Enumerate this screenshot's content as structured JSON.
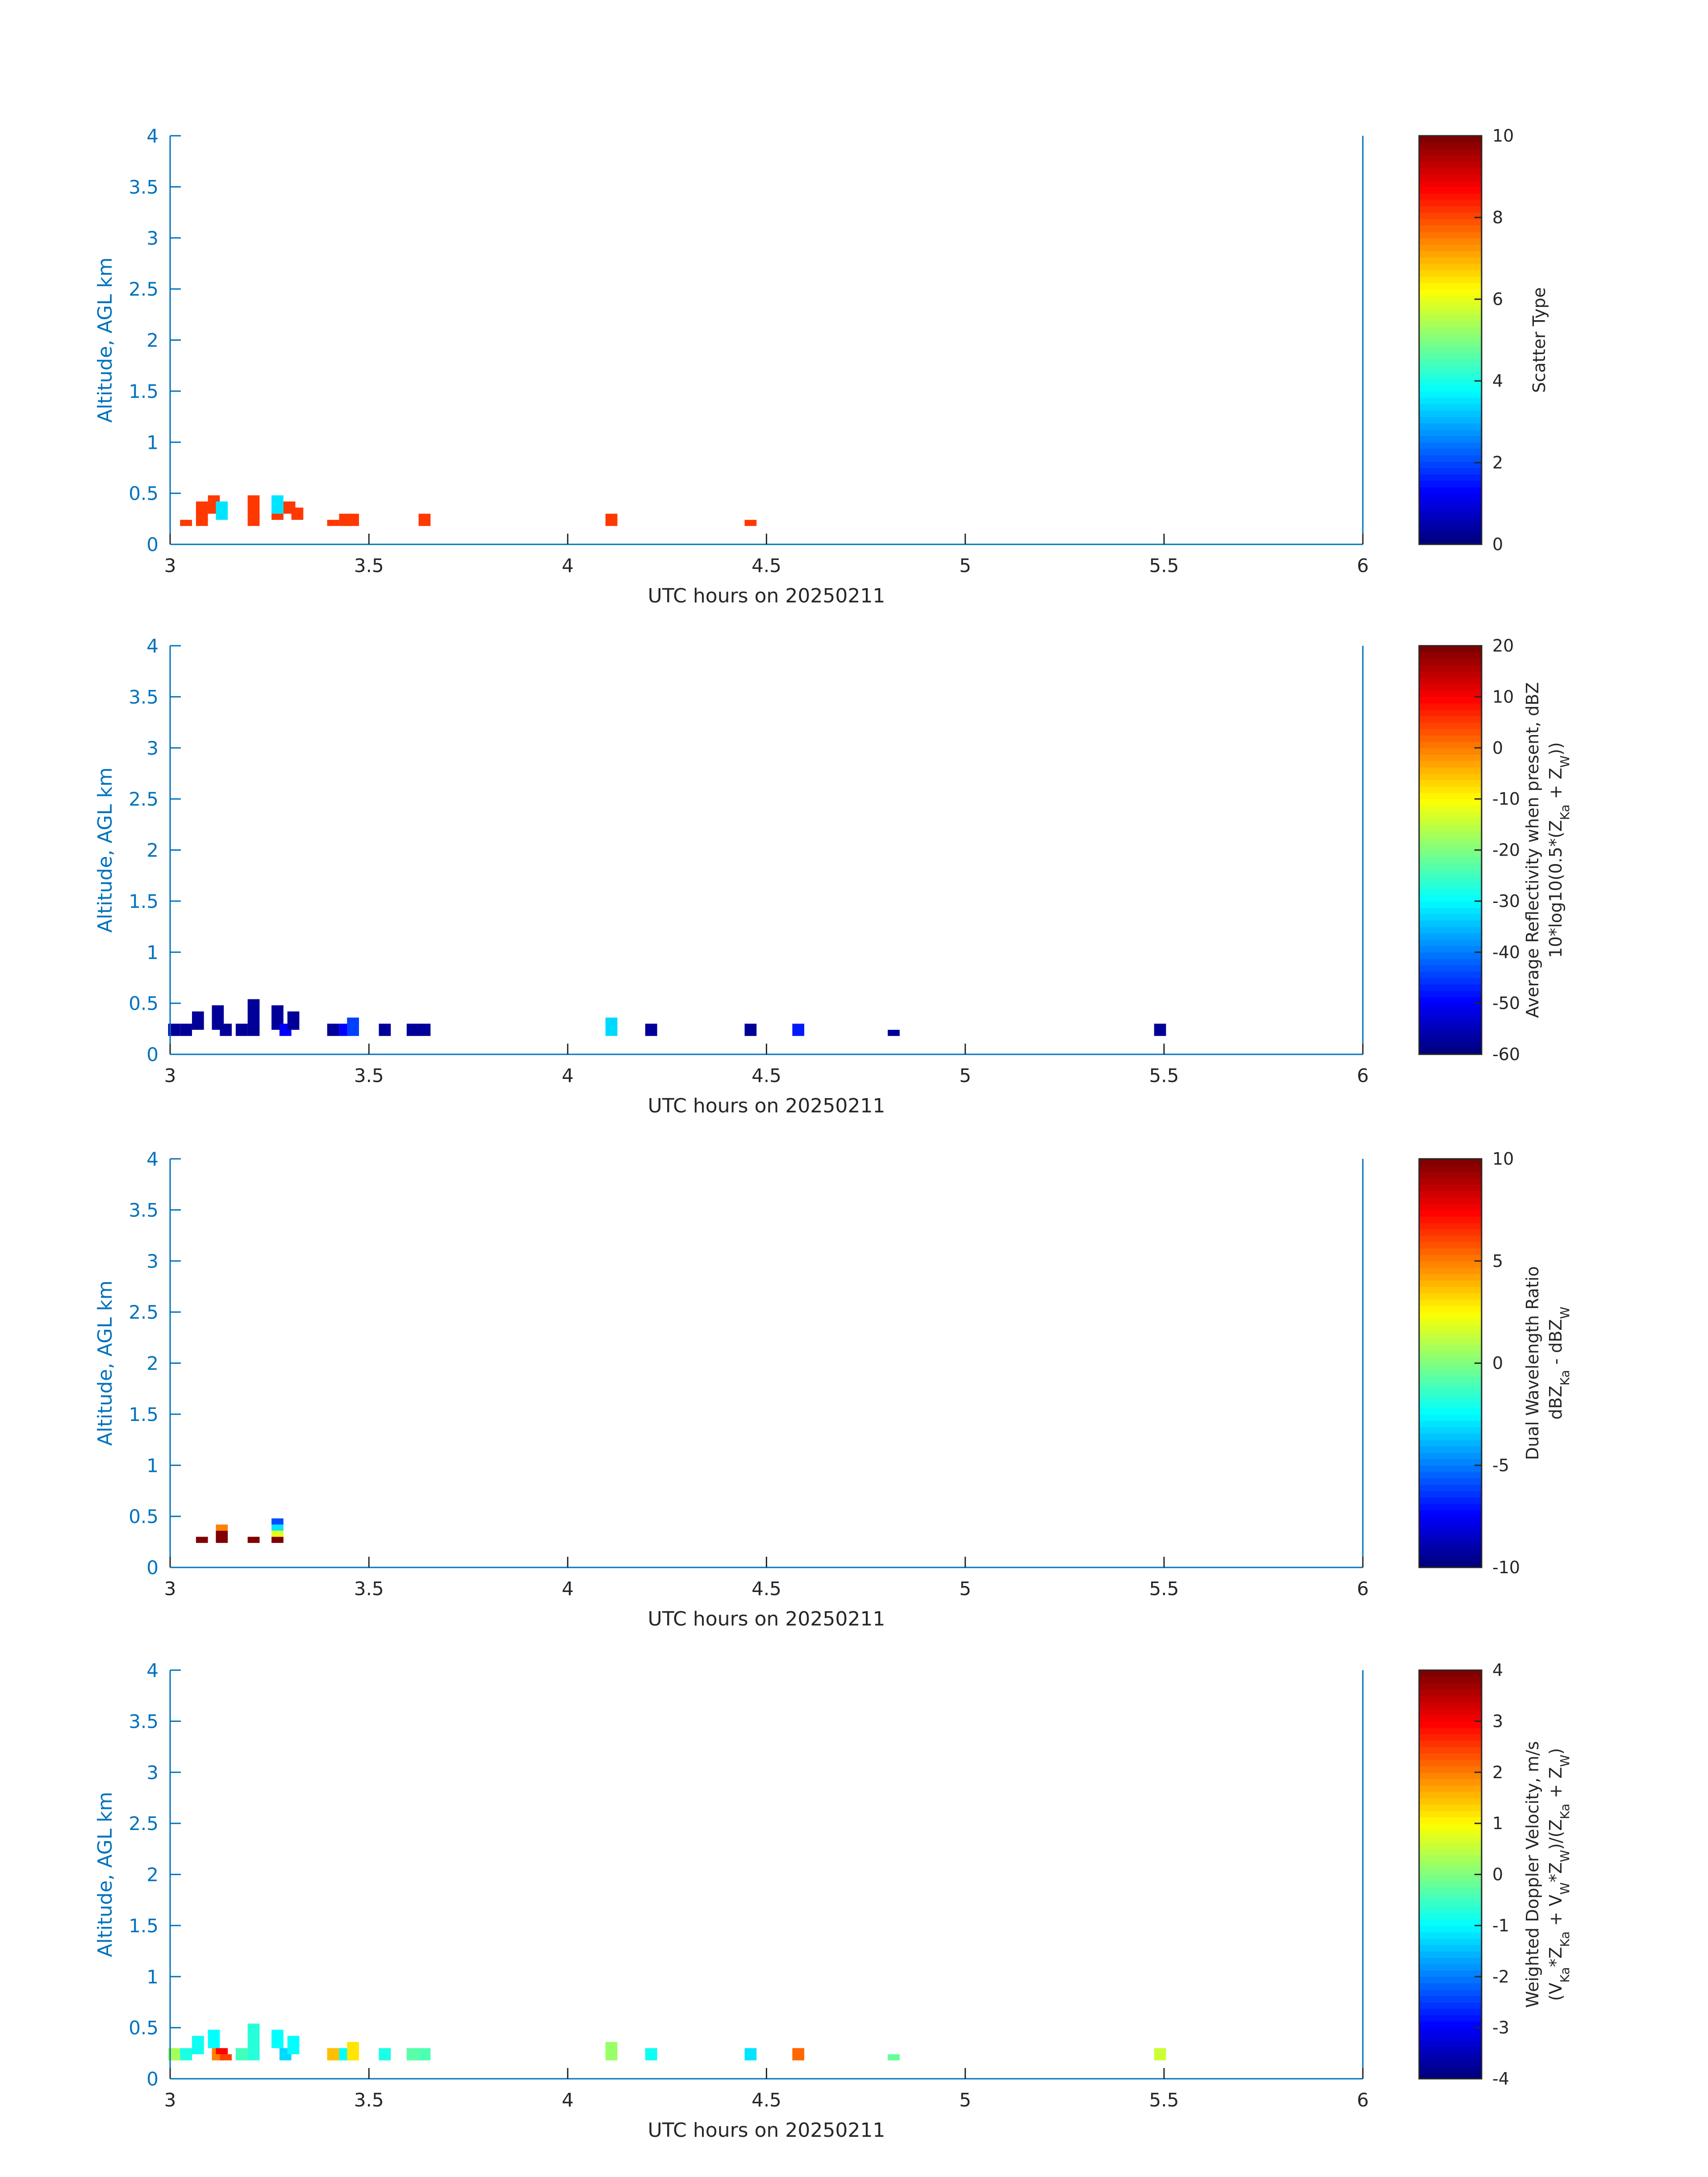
{
  "colors": {
    "axis": "#0072BD",
    "text": "#262626",
    "colormap": "jet"
  },
  "chart_data": [
    {
      "type": "heatmap",
      "title": "",
      "xlabel": "UTC hours on 20250211",
      "ylabel": "Altitude, AGL km",
      "xlim": [
        3,
        6
      ],
      "ylim": [
        0,
        4
      ],
      "x_ticks": [
        "3",
        "3.5",
        "4",
        "4.5",
        "5",
        "5.5",
        "6"
      ],
      "y_ticks": [
        "0",
        "0.5",
        "1",
        "1.5",
        "2",
        "2.5",
        "3",
        "3.5",
        "4"
      ],
      "grid": false,
      "colorbar": {
        "label_lines": [
          "Scatter Type"
        ],
        "range": [
          0,
          10
        ],
        "ticks": [
          "0",
          "2",
          "4",
          "6",
          "8",
          "10"
        ]
      },
      "cells": [
        {
          "x": 3.04,
          "y0": 0.18,
          "y1": 0.24,
          "v": 8.2
        },
        {
          "x": 3.08,
          "y0": 0.18,
          "y1": 0.42,
          "v": 8.2
        },
        {
          "x": 3.11,
          "y0": 0.3,
          "y1": 0.48,
          "v": 8.2
        },
        {
          "x": 3.13,
          "y0": 0.24,
          "y1": 0.42,
          "v": 3.5
        },
        {
          "x": 3.21,
          "y0": 0.18,
          "y1": 0.48,
          "v": 8.2
        },
        {
          "x": 3.27,
          "y0": 0.24,
          "y1": 0.48,
          "v": 3.5
        },
        {
          "x": 3.27,
          "y0": 0.24,
          "y1": 0.3,
          "v": 8.2
        },
        {
          "x": 3.3,
          "y0": 0.3,
          "y1": 0.42,
          "v": 8.2
        },
        {
          "x": 3.32,
          "y0": 0.24,
          "y1": 0.36,
          "v": 8.2
        },
        {
          "x": 3.41,
          "y0": 0.18,
          "y1": 0.24,
          "v": 8.2
        },
        {
          "x": 3.44,
          "y0": 0.18,
          "y1": 0.3,
          "v": 8.2
        },
        {
          "x": 3.46,
          "y0": 0.18,
          "y1": 0.3,
          "v": 8.2
        },
        {
          "x": 3.64,
          "y0": 0.18,
          "y1": 0.3,
          "v": 8.2
        },
        {
          "x": 4.11,
          "y0": 0.18,
          "y1": 0.3,
          "v": 8.2
        },
        {
          "x": 4.46,
          "y0": 0.18,
          "y1": 0.24,
          "v": 8.2
        }
      ]
    },
    {
      "type": "heatmap",
      "title": "",
      "xlabel": "UTC hours on 20250211",
      "ylabel": "Altitude, AGL km",
      "xlim": [
        3,
        6
      ],
      "ylim": [
        0,
        4
      ],
      "x_ticks": [
        "3",
        "3.5",
        "4",
        "4.5",
        "5",
        "5.5",
        "6"
      ],
      "y_ticks": [
        "0",
        "0.5",
        "1",
        "1.5",
        "2",
        "2.5",
        "3",
        "3.5",
        "4"
      ],
      "grid": false,
      "colorbar": {
        "label_lines": [
          "Average Reflectivity when present, dBZ",
          "10*log10(0.5*(Z_Ka + Z_W))"
        ],
        "range": [
          -60,
          20
        ],
        "ticks": [
          "-60",
          "-50",
          "-40",
          "-30",
          "-20",
          "-10",
          "0",
          "10",
          "20"
        ]
      },
      "cells": [
        {
          "x": 3.01,
          "y0": 0.18,
          "y1": 0.3,
          "v": -58
        },
        {
          "x": 3.04,
          "y0": 0.18,
          "y1": 0.3,
          "v": -58
        },
        {
          "x": 3.07,
          "y0": 0.24,
          "y1": 0.42,
          "v": -58
        },
        {
          "x": 3.12,
          "y0": 0.24,
          "y1": 0.48,
          "v": -58
        },
        {
          "x": 3.14,
          "y0": 0.18,
          "y1": 0.3,
          "v": -58
        },
        {
          "x": 3.18,
          "y0": 0.18,
          "y1": 0.3,
          "v": -58
        },
        {
          "x": 3.21,
          "y0": 0.18,
          "y1": 0.54,
          "v": -58
        },
        {
          "x": 3.27,
          "y0": 0.24,
          "y1": 0.48,
          "v": -58
        },
        {
          "x": 3.29,
          "y0": 0.18,
          "y1": 0.3,
          "v": -50
        },
        {
          "x": 3.31,
          "y0": 0.24,
          "y1": 0.42,
          "v": -58
        },
        {
          "x": 3.41,
          "y0": 0.18,
          "y1": 0.3,
          "v": -58
        },
        {
          "x": 3.44,
          "y0": 0.18,
          "y1": 0.3,
          "v": -50
        },
        {
          "x": 3.46,
          "y0": 0.18,
          "y1": 0.36,
          "v": -45
        },
        {
          "x": 3.54,
          "y0": 0.18,
          "y1": 0.3,
          "v": -58
        },
        {
          "x": 3.61,
          "y0": 0.18,
          "y1": 0.3,
          "v": -58
        },
        {
          "x": 3.64,
          "y0": 0.18,
          "y1": 0.3,
          "v": -58
        },
        {
          "x": 4.11,
          "y0": 0.18,
          "y1": 0.36,
          "v": -33
        },
        {
          "x": 4.21,
          "y0": 0.18,
          "y1": 0.3,
          "v": -58
        },
        {
          "x": 4.46,
          "y0": 0.18,
          "y1": 0.3,
          "v": -58
        },
        {
          "x": 4.58,
          "y0": 0.18,
          "y1": 0.3,
          "v": -48
        },
        {
          "x": 4.82,
          "y0": 0.18,
          "y1": 0.24,
          "v": -58
        },
        {
          "x": 5.49,
          "y0": 0.18,
          "y1": 0.3,
          "v": -58
        }
      ]
    },
    {
      "type": "heatmap",
      "title": "",
      "xlabel": "UTC hours on 20250211",
      "ylabel": "Altitude, AGL km",
      "xlim": [
        3,
        6
      ],
      "ylim": [
        0,
        4
      ],
      "x_ticks": [
        "3",
        "3.5",
        "4",
        "4.5",
        "5",
        "5.5",
        "6"
      ],
      "y_ticks": [
        "0",
        "0.5",
        "1",
        "1.5",
        "2",
        "2.5",
        "3",
        "3.5",
        "4"
      ],
      "grid": false,
      "colorbar": {
        "label_lines": [
          "Dual Wavelength Ratio",
          "dBZ_Ka - dBZ_W"
        ],
        "range": [
          -10,
          10
        ],
        "ticks": [
          "-10",
          "-5",
          "0",
          "5",
          "10"
        ]
      },
      "cells": [
        {
          "x": 3.08,
          "y0": 0.24,
          "y1": 0.3,
          "v": 10
        },
        {
          "x": 3.13,
          "y0": 0.24,
          "y1": 0.36,
          "v": 10
        },
        {
          "x": 3.13,
          "y0": 0.36,
          "y1": 0.42,
          "v": 5
        },
        {
          "x": 3.21,
          "y0": 0.24,
          "y1": 0.3,
          "v": 10
        },
        {
          "x": 3.27,
          "y0": 0.24,
          "y1": 0.3,
          "v": 10
        },
        {
          "x": 3.27,
          "y0": 0.3,
          "y1": 0.36,
          "v": 2
        },
        {
          "x": 3.27,
          "y0": 0.36,
          "y1": 0.42,
          "v": -3
        },
        {
          "x": 3.27,
          "y0": 0.42,
          "y1": 0.48,
          "v": -6
        }
      ]
    },
    {
      "type": "heatmap",
      "title": "",
      "xlabel": "UTC hours on 20250211",
      "ylabel": "Altitude, AGL km",
      "xlim": [
        3,
        6
      ],
      "ylim": [
        0,
        4
      ],
      "x_ticks": [
        "3",
        "3.5",
        "4",
        "4.5",
        "5",
        "5.5",
        "6"
      ],
      "y_ticks": [
        "0",
        "0.5",
        "1",
        "1.5",
        "2",
        "2.5",
        "3",
        "3.5",
        "4"
      ],
      "grid": false,
      "colorbar": {
        "label_lines": [
          "Weighted Doppler Velocity, m/s",
          "(V_Ka*Z_Ka + V_W*Z_W)/(Z_Ka + Z_W)"
        ],
        "range": [
          -4,
          4
        ],
        "ticks": [
          "-4",
          "-3",
          "-2",
          "-1",
          "0",
          "1",
          "2",
          "3",
          "4"
        ]
      },
      "cells": [
        {
          "x": 3.01,
          "y0": 0.18,
          "y1": 0.3,
          "v": 0.3
        },
        {
          "x": 3.04,
          "y0": 0.18,
          "y1": 0.3,
          "v": -0.8
        },
        {
          "x": 3.07,
          "y0": 0.24,
          "y1": 0.42,
          "v": -0.9
        },
        {
          "x": 3.11,
          "y0": 0.3,
          "y1": 0.48,
          "v": -1.0
        },
        {
          "x": 3.12,
          "y0": 0.18,
          "y1": 0.3,
          "v": 2.0
        },
        {
          "x": 3.13,
          "y0": 0.24,
          "y1": 0.3,
          "v": 3.0
        },
        {
          "x": 3.14,
          "y0": 0.18,
          "y1": 0.24,
          "v": 2.5
        },
        {
          "x": 3.18,
          "y0": 0.18,
          "y1": 0.3,
          "v": -0.5
        },
        {
          "x": 3.21,
          "y0": 0.18,
          "y1": 0.54,
          "v": -0.7
        },
        {
          "x": 3.27,
          "y0": 0.3,
          "y1": 0.48,
          "v": -1.0
        },
        {
          "x": 3.29,
          "y0": 0.18,
          "y1": 0.3,
          "v": -1.3
        },
        {
          "x": 3.31,
          "y0": 0.24,
          "y1": 0.42,
          "v": -1.0
        },
        {
          "x": 3.41,
          "y0": 0.18,
          "y1": 0.3,
          "v": 1.5
        },
        {
          "x": 3.44,
          "y0": 0.18,
          "y1": 0.3,
          "v": -1.0
        },
        {
          "x": 3.46,
          "y0": 0.18,
          "y1": 0.36,
          "v": 1.2
        },
        {
          "x": 3.54,
          "y0": 0.18,
          "y1": 0.3,
          "v": -0.8
        },
        {
          "x": 3.61,
          "y0": 0.18,
          "y1": 0.3,
          "v": -0.3
        },
        {
          "x": 3.64,
          "y0": 0.18,
          "y1": 0.3,
          "v": -0.4
        },
        {
          "x": 4.11,
          "y0": 0.18,
          "y1": 0.36,
          "v": 0.2
        },
        {
          "x": 4.21,
          "y0": 0.18,
          "y1": 0.3,
          "v": -0.9
        },
        {
          "x": 4.46,
          "y0": 0.18,
          "y1": 0.3,
          "v": -1.2
        },
        {
          "x": 4.58,
          "y0": 0.18,
          "y1": 0.3,
          "v": 2.2
        },
        {
          "x": 4.82,
          "y0": 0.18,
          "y1": 0.24,
          "v": -0.2
        },
        {
          "x": 5.49,
          "y0": 0.18,
          "y1": 0.3,
          "v": 0.6
        }
      ]
    }
  ]
}
